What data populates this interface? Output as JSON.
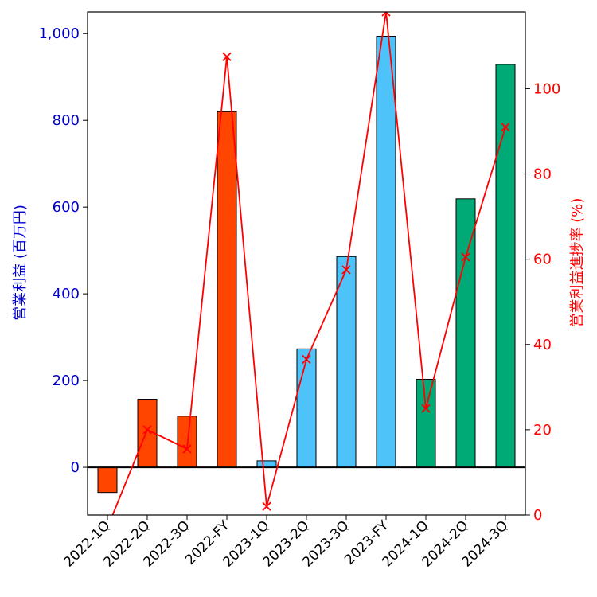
{
  "chart_data": {
    "type": "bar",
    "categories": [
      "2022-1Q",
      "2022-2Q",
      "2022-3Q",
      "2022-FY",
      "2023-1Q",
      "2023-2Q",
      "2023-3Q",
      "2023-FY",
      "2024-1Q",
      "2024-2Q",
      "2024-3Q"
    ],
    "series": [
      {
        "type": "bar",
        "axis": "left",
        "values": [
          -58,
          157,
          118,
          820,
          15,
          273,
          486,
          994,
          203,
          619,
          929
        ],
        "colors": [
          "#ff4500",
          "#ff4500",
          "#ff4500",
          "#ff4500",
          "#4dc3fa",
          "#4dc3fa",
          "#4dc3fa",
          "#4dc3fa",
          "#00aa77",
          "#00aa77",
          "#00aa77"
        ]
      },
      {
        "type": "line",
        "axis": "right",
        "marker": "x",
        "color": "#ff0000",
        "values": [
          -3,
          20,
          15.5,
          107.5,
          2,
          36.5,
          57.5,
          118,
          25,
          60.5,
          91
        ]
      }
    ],
    "ylabel": "営業利益 (百万円)",
    "y2label": "営業利益進捗率 (%)",
    "ylim": [
      -110,
      1050
    ],
    "y2lim": [
      0,
      118
    ],
    "yticks": [
      0,
      200,
      400,
      600,
      800,
      1000
    ],
    "yticklabels": [
      "0",
      "200",
      "400",
      "600",
      "800",
      "1,000"
    ],
    "y2ticks": [
      0,
      20,
      40,
      60,
      80,
      100
    ],
    "y2ticklabels": [
      "0",
      "20",
      "40",
      "60",
      "80",
      "100"
    ],
    "zero_line": true,
    "grid": false,
    "left_axis_color": "#0000cc",
    "right_axis_color": "#ff0000"
  }
}
